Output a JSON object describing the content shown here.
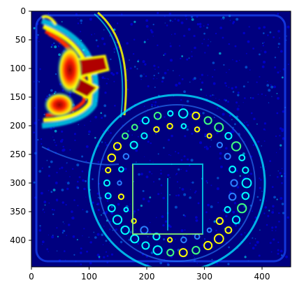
{
  "image": {
    "colormap": "jet",
    "xlim": [
      0,
      450
    ],
    "ylim": [
      450,
      0
    ],
    "x_ticks": [
      "0",
      "100",
      "200",
      "300",
      "400"
    ],
    "y_ticks": [
      "0",
      "50",
      "100",
      "150",
      "200",
      "250",
      "300",
      "350",
      "400"
    ],
    "colors": {
      "background": "#00007f",
      "low": "#0000ff",
      "mid": "#00ffff",
      "high": "#ffff00",
      "max": "#7f0000"
    }
  }
}
